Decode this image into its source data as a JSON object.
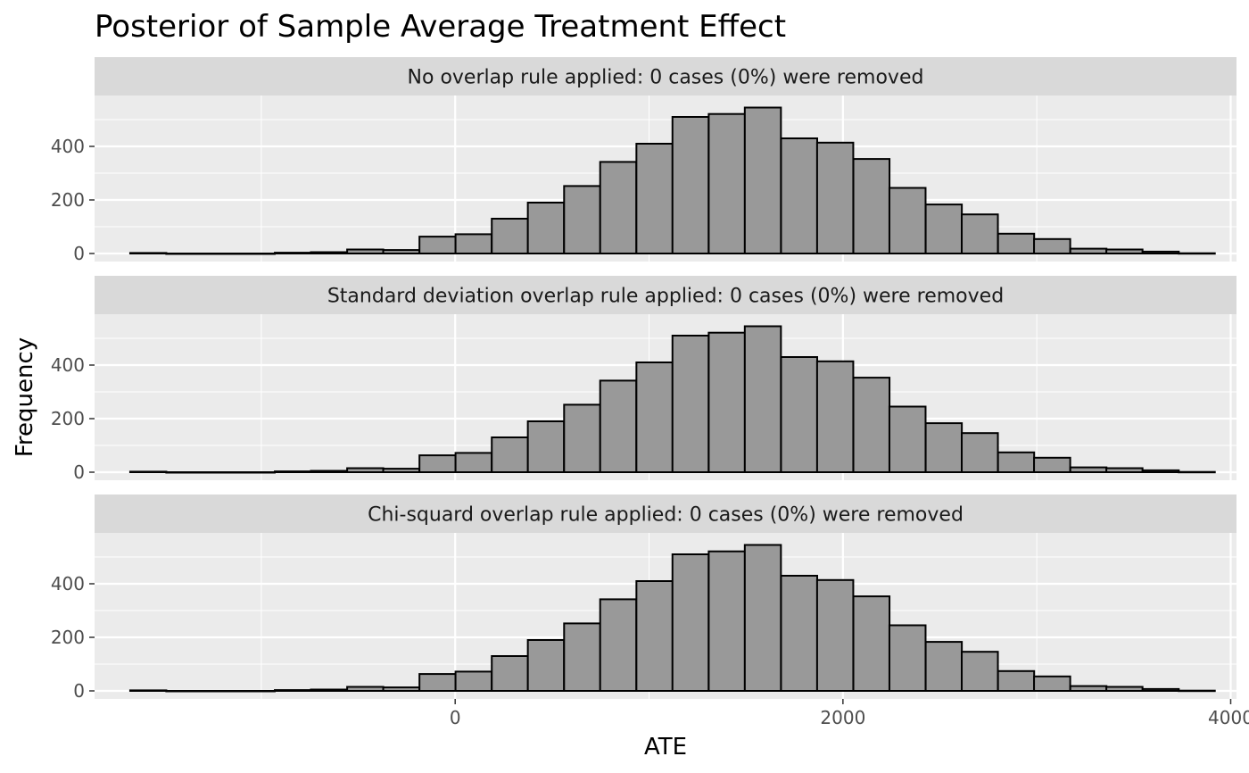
{
  "chart_data": {
    "type": "bar",
    "title": "Posterior of Sample Average Treatment Effect",
    "xlabel": "ATE",
    "ylabel": "Frequency",
    "xlim": [
      -1860,
      4030
    ],
    "ylim": [
      -30,
      590
    ],
    "x_ticks": [
      0,
      2000,
      4000
    ],
    "y_ticks": [
      0,
      200,
      400
    ],
    "grid": true,
    "bin_width": 186.5,
    "bin_centers": [
      -1583,
      -1397,
      -1210,
      -1024,
      -837,
      -651,
      -464,
      -278,
      -91,
      95,
      282,
      468,
      655,
      841,
      1028,
      1214,
      1401,
      1587,
      1774,
      1960,
      2147,
      2333,
      2520,
      2706,
      2893,
      3079,
      3266,
      3452,
      3639,
      3825
    ],
    "panels": [
      {
        "strip": "No overlap rule applied: 0 cases (0%) were removed",
        "counts": [
          2,
          0,
          0,
          0,
          3,
          5,
          15,
          13,
          63,
          72,
          130,
          190,
          252,
          342,
          410,
          510,
          521,
          545,
          430,
          414,
          353,
          245,
          183,
          146,
          74,
          54,
          18,
          15,
          7,
          1
        ]
      },
      {
        "strip": "Standard deviation overlap rule applied: 0 cases (0%) were removed",
        "counts": [
          2,
          0,
          0,
          0,
          3,
          5,
          15,
          13,
          63,
          72,
          130,
          190,
          252,
          342,
          410,
          510,
          521,
          545,
          430,
          414,
          353,
          245,
          183,
          146,
          74,
          54,
          18,
          15,
          7,
          1
        ]
      },
      {
        "strip": "Chi-squard overlap rule applied: 0 cases (0%) were removed",
        "counts": [
          2,
          0,
          0,
          0,
          3,
          5,
          15,
          13,
          63,
          72,
          130,
          190,
          252,
          342,
          410,
          510,
          521,
          545,
          430,
          414,
          353,
          245,
          183,
          146,
          74,
          54,
          18,
          15,
          7,
          1
        ]
      }
    ],
    "colors": {
      "panel_bg": "#ebebeb",
      "strip_bg": "#d9d9d9",
      "grid": "#ffffff",
      "bar_fill": "#999999",
      "bar_edge": "#000000"
    }
  }
}
